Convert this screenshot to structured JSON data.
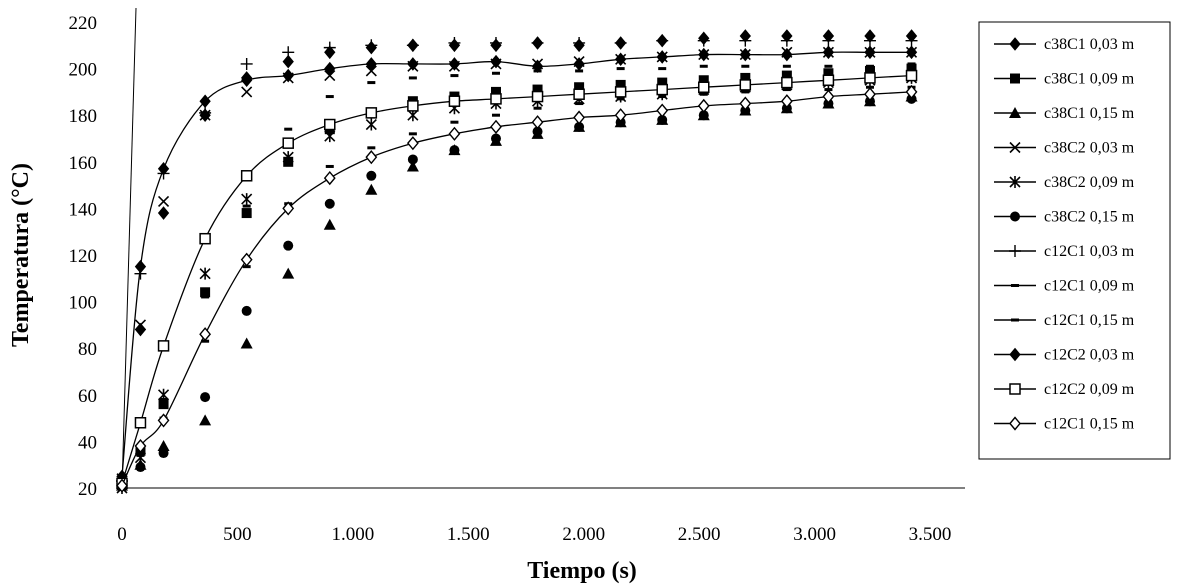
{
  "chart_data": {
    "type": "scatter",
    "title": "",
    "xlabel": "Tiempo (s)",
    "ylabel": "Temperatura (°C)",
    "xlim": [
      0,
      3500
    ],
    "ylim": [
      20,
      220
    ],
    "xticks": [
      "0",
      "500",
      "1.000",
      "1.500",
      "2.000",
      "2.500",
      "3.000",
      "3.500"
    ],
    "xtick_values": [
      0,
      500,
      1000,
      1500,
      2000,
      2500,
      3000,
      3500
    ],
    "yticks": [
      "20",
      "40",
      "60",
      "80",
      "100",
      "120",
      "140",
      "160",
      "180",
      "200",
      "220"
    ],
    "ytick_values": [
      20,
      40,
      60,
      80,
      100,
      120,
      140,
      160,
      180,
      200,
      220
    ],
    "grid": false,
    "legend_position": "right",
    "series": [
      {
        "name": "c38C1 0,03 m",
        "marker": "diamond-filled",
        "line": true,
        "x": [
          0,
          80,
          180,
          360,
          540,
          720,
          900,
          1080,
          1260,
          1440,
          1620,
          1800,
          1980,
          2160,
          2340,
          2520,
          2700,
          2880,
          3060,
          3240,
          3420
        ],
        "y": [
          25,
          115,
          157,
          186,
          195,
          197,
          200,
          202,
          202,
          202,
          203,
          201,
          202,
          204,
          205,
          206,
          206,
          206,
          207,
          207,
          207
        ]
      },
      {
        "name": "c38C1 0,09 m",
        "marker": "square-filled",
        "line": false,
        "x": [
          0,
          80,
          180,
          360,
          540,
          720,
          900,
          1080,
          1260,
          1440,
          1620,
          1800,
          1980,
          2160,
          2340,
          2520,
          2700,
          2880,
          3060,
          3240,
          3420
        ],
        "y": [
          22,
          36,
          56,
          104,
          138,
          160,
          174,
          181,
          186,
          188,
          190,
          191,
          192,
          193,
          194,
          195,
          196,
          197,
          198,
          199,
          200
        ]
      },
      {
        "name": "c38C1 0,15 m",
        "marker": "triangle-filled",
        "line": false,
        "x": [
          0,
          80,
          180,
          360,
          540,
          720,
          900,
          1080,
          1260,
          1440,
          1620,
          1800,
          1980,
          2160,
          2340,
          2520,
          2700,
          2880,
          3060,
          3240,
          3420
        ],
        "y": [
          21,
          30,
          38,
          49,
          82,
          112,
          133,
          148,
          158,
          165,
          169,
          172,
          175,
          177,
          178,
          180,
          182,
          183,
          185,
          186,
          188
        ]
      },
      {
        "name": "c38C2 0,03 m",
        "marker": "x",
        "line": false,
        "x": [
          0,
          80,
          180,
          360,
          540,
          720,
          900,
          1080,
          1260,
          1440,
          1620,
          1800,
          1980,
          2160,
          2340,
          2520,
          2700,
          2880,
          3060,
          3240,
          3420
        ],
        "y": [
          24,
          90,
          143,
          180,
          190,
          196,
          197,
          199,
          201,
          201,
          202,
          202,
          203,
          204,
          205,
          206,
          206,
          207,
          207,
          207,
          207
        ]
      },
      {
        "name": "c38C2 0,09 m",
        "marker": "asterisk",
        "line": false,
        "x": [
          0,
          80,
          180,
          360,
          540,
          720,
          900,
          1080,
          1260,
          1440,
          1620,
          1800,
          1980,
          2160,
          2340,
          2520,
          2700,
          2880,
          3060,
          3240,
          3420
        ],
        "y": [
          20,
          33,
          60,
          112,
          144,
          162,
          171,
          176,
          180,
          183,
          185,
          186,
          187,
          188,
          189,
          191,
          192,
          193,
          194,
          195,
          196
        ]
      },
      {
        "name": "c38C2 0,15 m",
        "marker": "circle-filled",
        "line": false,
        "x": [
          0,
          80,
          180,
          360,
          540,
          720,
          900,
          1080,
          1260,
          1440,
          1620,
          1800,
          1980,
          2160,
          2340,
          2520,
          2700,
          2880,
          3060,
          3240,
          3420
        ],
        "y": [
          21,
          29,
          35,
          59,
          96,
          124,
          142,
          154,
          161,
          165,
          170,
          173,
          175,
          177,
          178,
          180,
          182,
          183,
          185,
          186,
          187
        ]
      },
      {
        "name": "c12C1 0,03 m",
        "marker": "plus",
        "line": false,
        "x": [
          0,
          80,
          180,
          360,
          540,
          720,
          900,
          1080,
          1260,
          1440,
          1620,
          1800,
          1980,
          2160,
          2340,
          2520,
          2700,
          2880,
          3060,
          3240,
          3420
        ],
        "y": [
          23,
          112,
          155,
          181,
          202,
          207,
          209,
          210,
          210,
          211,
          211,
          211,
          211,
          211,
          212,
          212,
          212,
          212,
          212,
          212,
          212
        ]
      },
      {
        "name": "c12C1 0,09 m",
        "marker": "dash",
        "line": false,
        "x": [
          0,
          80,
          180,
          360,
          540,
          720,
          900,
          1080,
          1260,
          1440,
          1620,
          1800,
          1980,
          2160,
          2340,
          2520,
          2700,
          2880,
          3060,
          3240,
          3420
        ],
        "y": [
          22,
          38,
          58,
          102,
          141,
          174,
          188,
          194,
          196,
          197,
          198,
          199,
          199,
          200,
          200,
          201,
          201,
          201,
          201,
          201,
          202
        ]
      },
      {
        "name": "c12C1 0,15 m",
        "marker": "dash",
        "line": false,
        "x": [
          0,
          80,
          180,
          360,
          540,
          720,
          900,
          1080,
          1260,
          1440,
          1620,
          1800,
          1980,
          2160,
          2340,
          2520,
          2700,
          2880,
          3060,
          3240,
          3420
        ],
        "y": [
          21,
          34,
          50,
          83,
          115,
          142,
          158,
          166,
          172,
          177,
          180,
          183,
          185,
          187,
          188,
          189,
          190,
          191,
          191,
          192,
          192
        ]
      },
      {
        "name": "c12C2 0,03 m",
        "marker": "diamond-filled",
        "line": false,
        "x": [
          0,
          80,
          180,
          360,
          540,
          720,
          900,
          1080,
          1260,
          1440,
          1620,
          1800,
          1980,
          2160,
          2340,
          2520,
          2700,
          2880,
          3060,
          3240,
          3420
        ],
        "y": [
          22,
          88,
          138,
          180,
          196,
          203,
          207,
          209,
          210,
          210,
          210,
          211,
          210,
          211,
          212,
          213,
          214,
          214,
          214,
          214,
          214
        ]
      },
      {
        "name": "c12C2 0,09 m",
        "marker": "square-open",
        "line": true,
        "x": [
          0,
          80,
          180,
          360,
          540,
          720,
          900,
          1080,
          1260,
          1440,
          1620,
          1800,
          1980,
          2160,
          2340,
          2520,
          2700,
          2880,
          3060,
          3240,
          3420
        ],
        "y": [
          22,
          48,
          81,
          127,
          154,
          168,
          176,
          181,
          184,
          186,
          187,
          188,
          189,
          190,
          191,
          192,
          193,
          194,
          195,
          196,
          197
        ]
      },
      {
        "name": "c12C1 0,15 m",
        "marker": "diamond-open",
        "line": true,
        "x": [
          0,
          80,
          180,
          360,
          540,
          720,
          900,
          1080,
          1260,
          1440,
          1620,
          1800,
          1980,
          2160,
          2340,
          2520,
          2700,
          2880,
          3060,
          3240,
          3420
        ],
        "y": [
          21,
          38,
          49,
          86,
          118,
          140,
          153,
          162,
          168,
          172,
          175,
          177,
          179,
          180,
          182,
          184,
          185,
          186,
          188,
          189,
          190
        ]
      }
    ]
  }
}
